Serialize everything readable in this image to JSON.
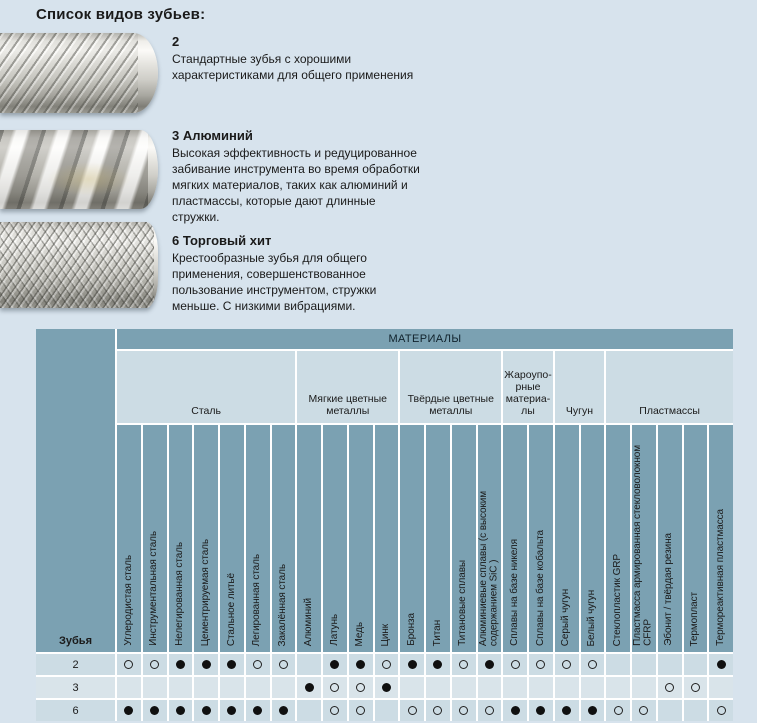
{
  "page": {
    "title": "Список видов зубьев:"
  },
  "colors": {
    "page_background": "#d7e3ed",
    "header_dark": "#7ba1b2",
    "cell_light": "#ccdce4",
    "row_alt": "#d9e4ea",
    "grid_line": "#ffffff",
    "dot": "#101010",
    "text": "#1a1a1a"
  },
  "tooth_types": [
    {
      "heading": "2",
      "description": "Стандартные зубья с хорошими характеристиками для общего применения",
      "image_name": "single-cut-spiral-burr-photo"
    },
    {
      "heading": "3 Алюминий",
      "description": "Высокая эффективность и редуцированное забивание инструмента во время обработки мягких материалов, таких как алюминий и пластмассы, которые дают длинные стружки.",
      "image_name": "aluminium-cut-burr-photo"
    },
    {
      "heading": "6 Торговый хит",
      "description": "Крестообразные зубья для общего применения, совершенствованное пользование инструментом, стружки меньше. С низкими вибрациями.",
      "image_name": "cross-cut-burr-photo"
    }
  ],
  "table": {
    "title": "МАТЕРИАЛЫ",
    "row_header": "Зубья",
    "groups": [
      {
        "label": "Сталь",
        "span": 7
      },
      {
        "label": "Мягкие цветные\nметаллы",
        "span": 4
      },
      {
        "label": "Твёрдые цветные\nметаллы",
        "span": 4
      },
      {
        "label": "Жароупо-\nрные\nматериа-\nлы",
        "span": 2
      },
      {
        "label": "Чугун",
        "span": 2
      },
      {
        "label": "Пластмассы",
        "span": 5
      }
    ],
    "columns": [
      "Углеродистая сталь",
      "Инструментальная сталь",
      "Нелегированная сталь",
      "Цементрируемая сталь",
      "Стальное литьё",
      "Легированная сталь",
      "Закалённая сталь",
      "Алюминий",
      "Латунь",
      "Медь",
      "Цинк",
      "Бронза",
      "Титан",
      "Титановые сплавы",
      "Алюминиевые сплавы (с высоким\nсодержанием SiC )",
      "Сплавы на базе никеля",
      "Сплавы на базе кобальта",
      "Серый чугун",
      "Белый чугун",
      "Стеклопластик GRP",
      "Пластмасса армированная стекловолокном\nCFRP",
      "Эбонит / твёрдая резина",
      "Термопласт",
      "Термореактивная пластмасса"
    ],
    "rows": [
      {
        "label": "2",
        "cells": [
          "open",
          "open",
          "filled",
          "filled",
          "filled",
          "open",
          "open",
          "",
          "filled",
          "filled",
          "open",
          "filled",
          "filled",
          "open",
          "filled",
          "open",
          "open",
          "open",
          "open",
          "",
          "",
          "",
          "",
          "filled"
        ]
      },
      {
        "label": "3",
        "cells": [
          "",
          "",
          "",
          "",
          "",
          "",
          "",
          "filled",
          "open",
          "open",
          "filled",
          "",
          "",
          "",
          "",
          "",
          "",
          "",
          "",
          "",
          "",
          "open",
          "open",
          ""
        ]
      },
      {
        "label": "6",
        "cells": [
          "filled",
          "filled",
          "filled",
          "filled",
          "filled",
          "filled",
          "filled",
          "",
          "open",
          "open",
          "",
          "open",
          "open",
          "open",
          "open",
          "filled",
          "filled",
          "filled",
          "filled",
          "open",
          "open",
          "",
          "",
          "open"
        ]
      }
    ]
  }
}
